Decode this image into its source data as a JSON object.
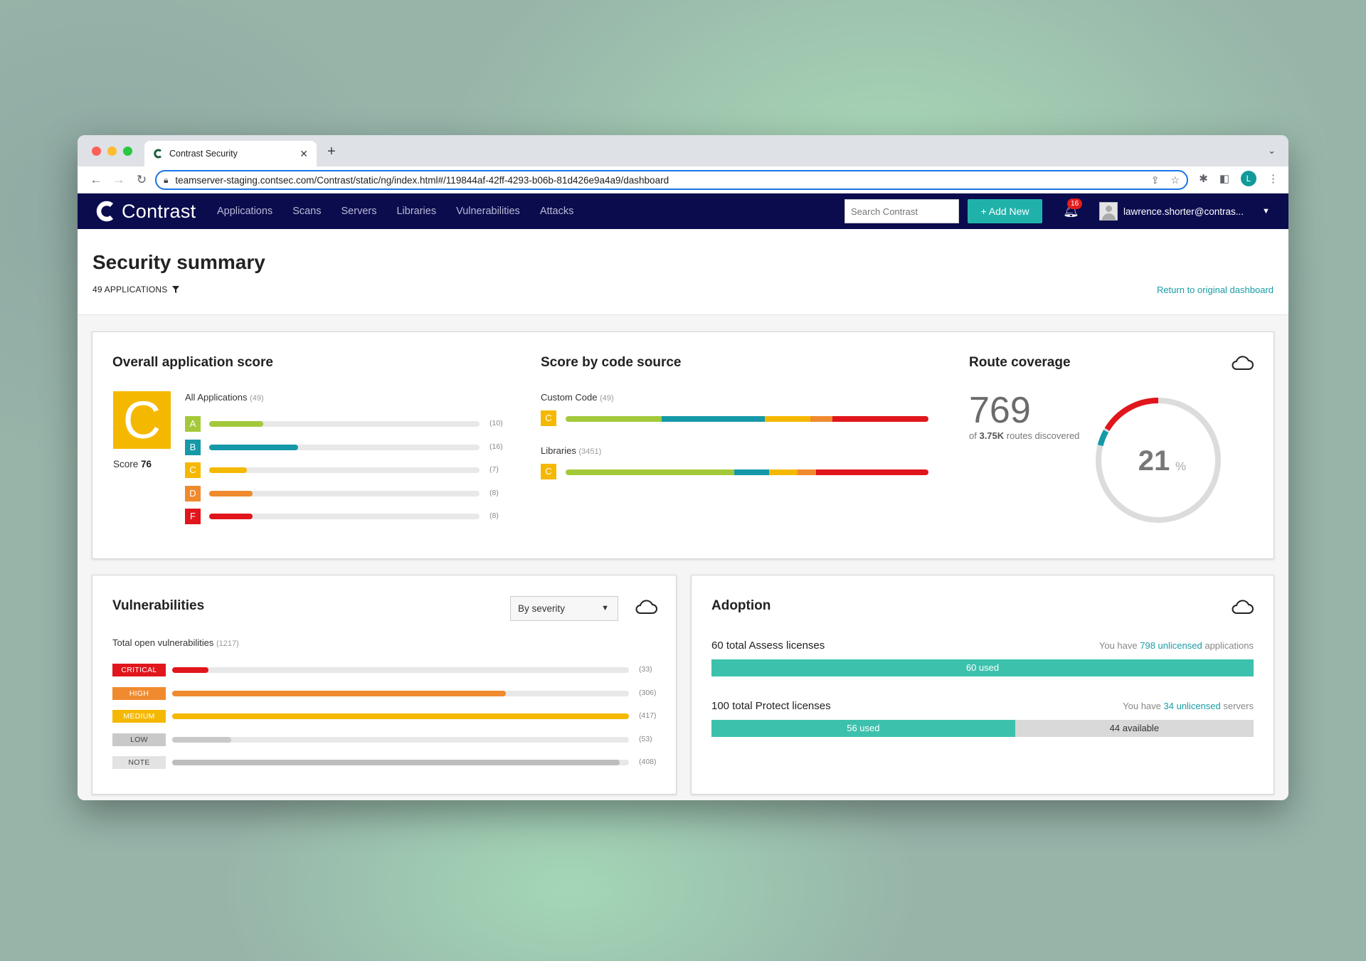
{
  "browser": {
    "tab_title": "Contrast Security",
    "url": "teamserver-staging.contsec.com/Contrast/static/ng/index.html#/119844af-42ff-4293-b06b-81d426e9a4a9/dashboard",
    "profile_initial": "L",
    "icons": [
      "back-icon",
      "forward-icon",
      "reload-icon",
      "lock-icon",
      "share-icon",
      "star-icon",
      "extensions-icon",
      "sidebar-icon",
      "menu-icon"
    ]
  },
  "nav": {
    "brand": "Contrast",
    "items": [
      "Applications",
      "Scans",
      "Servers",
      "Libraries",
      "Vulnerabilities",
      "Attacks"
    ],
    "search_placeholder": "Search Contrast",
    "add_new": "+ Add New",
    "notifications": "16",
    "user": "lawrence.shorter@contras...",
    "accent_color": "#20b2aa",
    "bar_color": "#0b0c4e"
  },
  "header": {
    "title": "Security summary",
    "app_count": "49 APPLICATIONS",
    "return_link": "Return to original dashboard"
  },
  "overall": {
    "title": "Overall application score",
    "grade": "C",
    "score_prefix": "Score",
    "score_value": "76",
    "group_label": "All Applications",
    "group_count": "(49)",
    "grades": [
      {
        "grade": "A",
        "count": "(10)",
        "fraction": 0.2,
        "color": "#a3c93a"
      },
      {
        "grade": "B",
        "count": "(16)",
        "fraction": 0.33,
        "color": "#1599a8"
      },
      {
        "grade": "C",
        "count": "(7)",
        "fraction": 0.14,
        "color": "#f5b800"
      },
      {
        "grade": "D",
        "count": "(8)",
        "fraction": 0.16,
        "color": "#f08a2e"
      },
      {
        "grade": "F",
        "count": "(8)",
        "fraction": 0.16,
        "color": "#e0161c"
      }
    ]
  },
  "code_source": {
    "title": "Score by code source",
    "rows": [
      {
        "label": "Custom Code",
        "count": "(49)",
        "grade": "C",
        "segments": [
          0.265,
          0.285,
          0.125,
          0.06,
          0.265
        ]
      },
      {
        "label": "Libraries",
        "count": "(3451)",
        "grade": "C",
        "segments": [
          0.465,
          0.095,
          0.08,
          0.05,
          0.31
        ]
      }
    ],
    "segment_colors": [
      "#a3c93a",
      "#1599a8",
      "#f5b800",
      "#f08a2e",
      "#e0161c"
    ]
  },
  "route": {
    "title": "Route coverage",
    "count": "769",
    "sub_prefix": "of",
    "sub_bold": "3.75K",
    "sub_suffix": "routes discovered",
    "percent": "21",
    "percent_sign": "%",
    "percent_value": 21
  },
  "vulns": {
    "title": "Vulnerabilities",
    "select_value": "By severity",
    "total_label": "Total open vulnerabilities",
    "total_count": "(1217)",
    "rows": [
      {
        "label": "CRITICAL",
        "count": "(33)",
        "fraction": 0.08,
        "color": "#e0161c",
        "text": "#ffffff"
      },
      {
        "label": "HIGH",
        "count": "(306)",
        "fraction": 0.73,
        "color": "#f08a2e",
        "text": "#ffffff"
      },
      {
        "label": "MEDIUM",
        "count": "(417)",
        "fraction": 1.0,
        "color": "#f5b800",
        "text": "#ffffff"
      },
      {
        "label": "LOW",
        "count": "(53)",
        "fraction": 0.13,
        "color": "#c9c9c9",
        "text": "#444444"
      },
      {
        "label": "NOTE",
        "count": "(408)",
        "fraction": 0.98,
        "color": "#e3e3e3",
        "text": "#444444",
        "bar": "#bdbdbd"
      }
    ]
  },
  "adoption": {
    "title": "Adoption",
    "assess": {
      "label": "60 total Assess licenses",
      "note_prefix": "You have",
      "note_link": "798 unlicensed",
      "note_suffix": "applications",
      "used_label": "60 used",
      "used_fraction": 1.0
    },
    "protect": {
      "label": "100 total Protect licenses",
      "note_prefix": "You have",
      "note_link": "34 unlicensed",
      "note_suffix": "servers",
      "used_label": "56 used",
      "available_label": "44 available",
      "used_fraction": 0.56
    }
  }
}
